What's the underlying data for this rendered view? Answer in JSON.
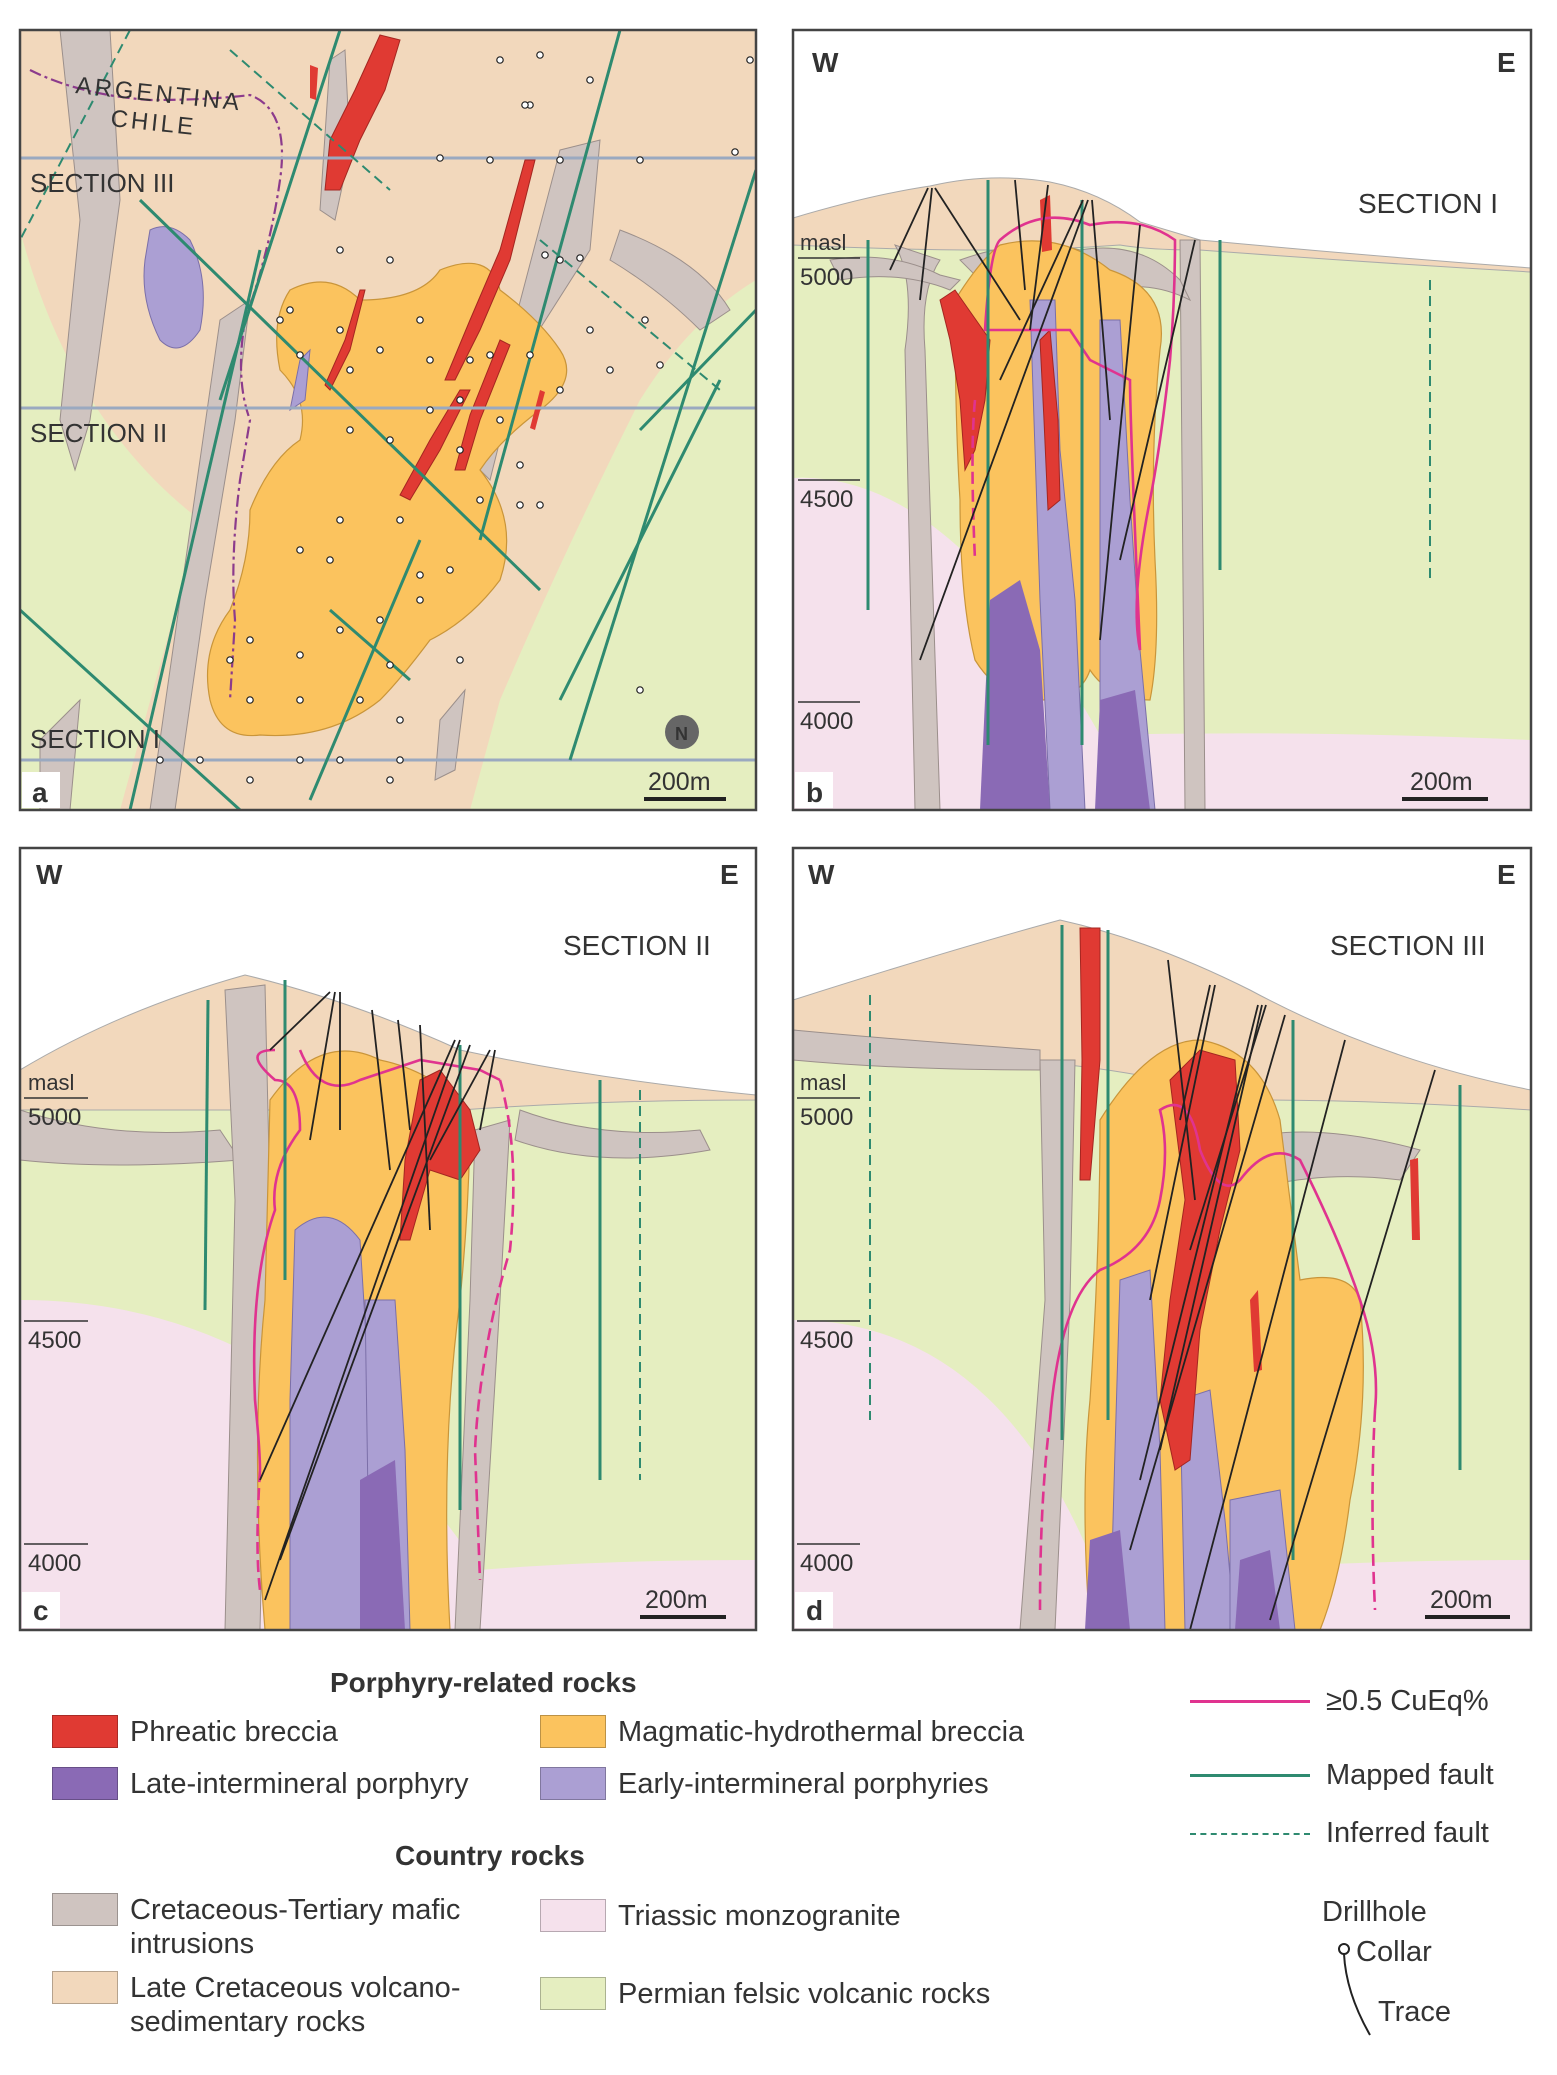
{
  "panels": {
    "a": {
      "letter": "a",
      "country_labels": {
        "argentina": "ARGENTINA",
        "chile": "CHILE"
      },
      "sections": {
        "iii": "SECTION  III",
        "ii": "SECTION  II",
        "i": "SECTION  I"
      },
      "scale": "200m",
      "north": "N"
    },
    "b": {
      "letter": "b",
      "west": "W",
      "east": "E",
      "title": "SECTION  I",
      "masl": "masl",
      "elev": [
        "5000",
        "4500",
        "4000"
      ],
      "scale": "200m"
    },
    "c": {
      "letter": "c",
      "west": "W",
      "east": "E",
      "title": "SECTION  II",
      "masl": "masl",
      "elev": [
        "5000",
        "4500",
        "4000"
      ],
      "scale": "200m"
    },
    "d": {
      "letter": "d",
      "west": "W",
      "east": "E",
      "title": "SECTION  III",
      "masl": "masl",
      "elev": [
        "5000",
        "4500",
        "4000"
      ],
      "scale": "200m"
    }
  },
  "legend": {
    "porphyry_heading": "Porphyry-related rocks",
    "country_heading": "Country rocks",
    "units": [
      {
        "key": "phreatic",
        "label": "Phreatic breccia",
        "color": "#e03a33"
      },
      {
        "key": "magmatic",
        "label": "Magmatic-hydrothermal breccia",
        "color": "#fbc35e"
      },
      {
        "key": "late",
        "label": "Late-intermineral porphyry",
        "color": "#8a6ab5"
      },
      {
        "key": "early",
        "label": "Early-intermineral porphyries",
        "color": "#ab9fd3"
      },
      {
        "key": "mafic",
        "label": "Cretaceous-Tertiary mafic intrusions",
        "color": "#cfc4c0"
      },
      {
        "key": "monzo",
        "label": "Triassic monzogranite",
        "color": "#f5e1ec"
      },
      {
        "key": "volcano",
        "label": "Late Cretaceous volcano-sedimentary rocks",
        "color": "#f2d8bc"
      },
      {
        "key": "permian",
        "label": "Permian felsic volcanic rocks",
        "color": "#e5eec0"
      }
    ],
    "lines": {
      "cueq": "≥0.5 CuEq%",
      "mapped": "Mapped fault",
      "inferred": "Inferred fault",
      "drillhole": "Drillhole",
      "collar": "Collar",
      "trace": "Trace"
    },
    "line_colors": {
      "cueq": "#e0338f",
      "fault": "#2e8a70",
      "drill": "#222222"
    }
  }
}
